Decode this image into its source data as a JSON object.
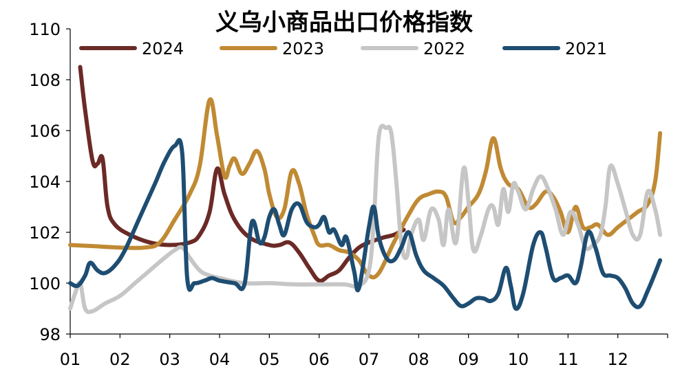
{
  "chart_data": {
    "type": "line",
    "title": "义乌小商品出口价格指数",
    "xlabel": "",
    "ylabel": "",
    "ylim": [
      98,
      110
    ],
    "yticks": [
      98,
      100,
      102,
      104,
      106,
      108,
      110
    ],
    "xlim": [
      1,
      13
    ],
    "xticks": [
      "01",
      "02",
      "03",
      "04",
      "05",
      "06",
      "07",
      "08",
      "09",
      "10",
      "11",
      "12"
    ],
    "grid": false,
    "legend_position": "top",
    "series": [
      {
        "name": "2024",
        "color": "#6b2a26",
        "points": [
          [
            1.2,
            108.5
          ],
          [
            1.3,
            106.8
          ],
          [
            1.45,
            104.8
          ],
          [
            1.55,
            104.7
          ],
          [
            1.65,
            104.9
          ],
          [
            1.75,
            103.0
          ],
          [
            1.9,
            102.3
          ],
          [
            2.2,
            101.9
          ],
          [
            2.6,
            101.6
          ],
          [
            3.0,
            101.5
          ],
          [
            3.4,
            101.6
          ],
          [
            3.6,
            101.9
          ],
          [
            3.8,
            102.8
          ],
          [
            3.95,
            104.5
          ],
          [
            4.1,
            103.5
          ],
          [
            4.3,
            102.5
          ],
          [
            4.6,
            101.8
          ],
          [
            5.0,
            101.5
          ],
          [
            5.2,
            101.5
          ],
          [
            5.4,
            101.6
          ],
          [
            5.6,
            101.2
          ],
          [
            5.8,
            100.6
          ],
          [
            6.0,
            100.1
          ],
          [
            6.2,
            100.3
          ],
          [
            6.4,
            100.5
          ],
          [
            6.6,
            101.0
          ],
          [
            6.8,
            101.4
          ],
          [
            7.0,
            101.6
          ],
          [
            7.3,
            101.8
          ],
          [
            7.5,
            101.9
          ],
          [
            7.7,
            102.1
          ]
        ]
      },
      {
        "name": "2023",
        "color": "#c08a34",
        "points": [
          [
            1.0,
            101.5
          ],
          [
            1.5,
            101.45
          ],
          [
            2.0,
            101.4
          ],
          [
            2.5,
            101.4
          ],
          [
            2.8,
            101.6
          ],
          [
            3.1,
            102.5
          ],
          [
            3.4,
            103.5
          ],
          [
            3.6,
            104.6
          ],
          [
            3.8,
            107.2
          ],
          [
            3.95,
            105.8
          ],
          [
            4.1,
            104.2
          ],
          [
            4.2,
            104.6
          ],
          [
            4.3,
            104.9
          ],
          [
            4.45,
            104.3
          ],
          [
            4.6,
            104.7
          ],
          [
            4.75,
            105.2
          ],
          [
            4.9,
            104.5
          ],
          [
            5.0,
            103.5
          ],
          [
            5.15,
            102.6
          ],
          [
            5.3,
            102.9
          ],
          [
            5.45,
            104.4
          ],
          [
            5.6,
            103.9
          ],
          [
            5.75,
            102.7
          ],
          [
            5.9,
            101.9
          ],
          [
            6.0,
            101.5
          ],
          [
            6.2,
            101.5
          ],
          [
            6.4,
            101.3
          ],
          [
            6.6,
            101.2
          ],
          [
            6.8,
            100.9
          ],
          [
            7.0,
            100.3
          ],
          [
            7.2,
            100.4
          ],
          [
            7.5,
            101.6
          ],
          [
            7.8,
            102.7
          ],
          [
            8.0,
            103.3
          ],
          [
            8.2,
            103.5
          ],
          [
            8.4,
            103.6
          ],
          [
            8.55,
            103.4
          ],
          [
            8.7,
            102.4
          ],
          [
            8.85,
            102.6
          ],
          [
            9.0,
            103.0
          ],
          [
            9.2,
            103.5
          ],
          [
            9.35,
            104.4
          ],
          [
            9.5,
            105.7
          ],
          [
            9.65,
            104.5
          ],
          [
            9.8,
            103.9
          ],
          [
            10.0,
            103.7
          ],
          [
            10.2,
            103.0
          ],
          [
            10.35,
            103.1
          ],
          [
            10.55,
            103.6
          ],
          [
            10.7,
            103.4
          ],
          [
            10.85,
            102.8
          ],
          [
            11.0,
            102.0
          ],
          [
            11.15,
            103.0
          ],
          [
            11.3,
            102.2
          ],
          [
            11.45,
            102.2
          ],
          [
            11.6,
            102.3
          ],
          [
            11.8,
            101.9
          ],
          [
            12.0,
            102.2
          ],
          [
            12.2,
            102.5
          ],
          [
            12.4,
            102.8
          ],
          [
            12.6,
            103.1
          ],
          [
            12.75,
            104.0
          ],
          [
            12.85,
            105.9
          ]
        ]
      },
      {
        "name": "2022",
        "color": "#c6c6c6",
        "points": [
          [
            1.0,
            99.0
          ],
          [
            1.1,
            99.6
          ],
          [
            1.2,
            100.0
          ],
          [
            1.3,
            99.0
          ],
          [
            1.45,
            98.9
          ],
          [
            1.7,
            99.2
          ],
          [
            2.0,
            99.5
          ],
          [
            2.3,
            100.0
          ],
          [
            2.6,
            100.5
          ],
          [
            2.9,
            101.0
          ],
          [
            3.1,
            101.3
          ],
          [
            3.25,
            101.4
          ],
          [
            3.4,
            101.0
          ],
          [
            3.6,
            100.5
          ],
          [
            3.8,
            100.3
          ],
          [
            4.0,
            100.2
          ],
          [
            4.5,
            100.0
          ],
          [
            5.0,
            100.0
          ],
          [
            5.5,
            99.95
          ],
          [
            6.0,
            99.95
          ],
          [
            6.5,
            99.95
          ],
          [
            6.8,
            99.9
          ],
          [
            7.0,
            100.5
          ],
          [
            7.1,
            102.5
          ],
          [
            7.2,
            105.8
          ],
          [
            7.35,
            106.1
          ],
          [
            7.45,
            105.9
          ],
          [
            7.55,
            104.0
          ],
          [
            7.65,
            101.6
          ],
          [
            7.75,
            101.0
          ],
          [
            7.85,
            101.9
          ],
          [
            8.0,
            102.5
          ],
          [
            8.1,
            101.7
          ],
          [
            8.25,
            102.9
          ],
          [
            8.4,
            102.5
          ],
          [
            8.5,
            101.5
          ],
          [
            8.6,
            102.9
          ],
          [
            8.75,
            101.6
          ],
          [
            8.9,
            104.5
          ],
          [
            9.0,
            103.2
          ],
          [
            9.1,
            101.3
          ],
          [
            9.25,
            101.9
          ],
          [
            9.4,
            102.9
          ],
          [
            9.5,
            103.0
          ],
          [
            9.6,
            102.3
          ],
          [
            9.7,
            103.7
          ],
          [
            9.8,
            102.8
          ],
          [
            9.9,
            103.9
          ],
          [
            10.0,
            103.6
          ],
          [
            10.15,
            102.9
          ],
          [
            10.3,
            103.7
          ],
          [
            10.45,
            104.2
          ],
          [
            10.6,
            103.7
          ],
          [
            10.75,
            102.9
          ],
          [
            10.9,
            101.9
          ],
          [
            11.05,
            102.8
          ],
          [
            11.2,
            102.3
          ],
          [
            11.35,
            101.4
          ],
          [
            11.5,
            101.5
          ],
          [
            11.65,
            101.9
          ],
          [
            11.75,
            103.0
          ],
          [
            11.85,
            104.6
          ],
          [
            12.0,
            103.9
          ],
          [
            12.15,
            102.9
          ],
          [
            12.3,
            101.9
          ],
          [
            12.45,
            101.9
          ],
          [
            12.6,
            103.6
          ],
          [
            12.75,
            102.9
          ],
          [
            12.85,
            101.9
          ]
        ]
      },
      {
        "name": "2021",
        "color": "#1e4d72",
        "points": [
          [
            1.0,
            100.0
          ],
          [
            1.15,
            99.9
          ],
          [
            1.3,
            100.3
          ],
          [
            1.4,
            100.8
          ],
          [
            1.55,
            100.5
          ],
          [
            1.7,
            100.4
          ],
          [
            1.9,
            100.7
          ],
          [
            2.1,
            101.3
          ],
          [
            2.4,
            102.6
          ],
          [
            2.7,
            103.9
          ],
          [
            2.9,
            104.8
          ],
          [
            3.1,
            105.4
          ],
          [
            3.25,
            105.1
          ],
          [
            3.35,
            100.2
          ],
          [
            3.5,
            100.0
          ],
          [
            3.7,
            100.1
          ],
          [
            3.85,
            100.2
          ],
          [
            4.0,
            100.1
          ],
          [
            4.3,
            100.0
          ],
          [
            4.5,
            99.95
          ],
          [
            4.65,
            102.4
          ],
          [
            4.8,
            101.6
          ],
          [
            4.9,
            101.8
          ],
          [
            5.0,
            102.6
          ],
          [
            5.1,
            102.9
          ],
          [
            5.2,
            102.3
          ],
          [
            5.3,
            101.9
          ],
          [
            5.45,
            102.9
          ],
          [
            5.6,
            103.1
          ],
          [
            5.75,
            102.4
          ],
          [
            5.9,
            102.2
          ],
          [
            6.0,
            102.3
          ],
          [
            6.1,
            102.6
          ],
          [
            6.2,
            102.0
          ],
          [
            6.3,
            102.1
          ],
          [
            6.45,
            101.5
          ],
          [
            6.55,
            101.8
          ],
          [
            6.7,
            100.5
          ],
          [
            6.8,
            99.8
          ],
          [
            7.0,
            102.2
          ],
          [
            7.1,
            103.0
          ],
          [
            7.2,
            101.8
          ],
          [
            7.35,
            101.0
          ],
          [
            7.5,
            100.9
          ],
          [
            7.65,
            101.4
          ],
          [
            7.8,
            102.0
          ],
          [
            7.95,
            101.1
          ],
          [
            8.1,
            100.5
          ],
          [
            8.3,
            100.2
          ],
          [
            8.5,
            99.9
          ],
          [
            8.7,
            99.4
          ],
          [
            8.85,
            99.1
          ],
          [
            9.0,
            99.2
          ],
          [
            9.15,
            99.4
          ],
          [
            9.3,
            99.4
          ],
          [
            9.45,
            99.3
          ],
          [
            9.6,
            99.6
          ],
          [
            9.75,
            100.6
          ],
          [
            9.85,
            99.9
          ],
          [
            9.95,
            99.0
          ],
          [
            10.1,
            99.6
          ],
          [
            10.3,
            101.5
          ],
          [
            10.45,
            102.0
          ],
          [
            10.55,
            101.4
          ],
          [
            10.7,
            100.2
          ],
          [
            10.85,
            100.2
          ],
          [
            11.0,
            100.3
          ],
          [
            11.15,
            100.0
          ],
          [
            11.25,
            100.6
          ],
          [
            11.4,
            102.0
          ],
          [
            11.55,
            101.4
          ],
          [
            11.7,
            100.4
          ],
          [
            11.85,
            100.3
          ],
          [
            12.0,
            100.2
          ],
          [
            12.15,
            99.8
          ],
          [
            12.3,
            99.2
          ],
          [
            12.45,
            99.1
          ],
          [
            12.6,
            99.7
          ],
          [
            12.75,
            100.4
          ],
          [
            12.85,
            100.9
          ]
        ]
      }
    ]
  }
}
